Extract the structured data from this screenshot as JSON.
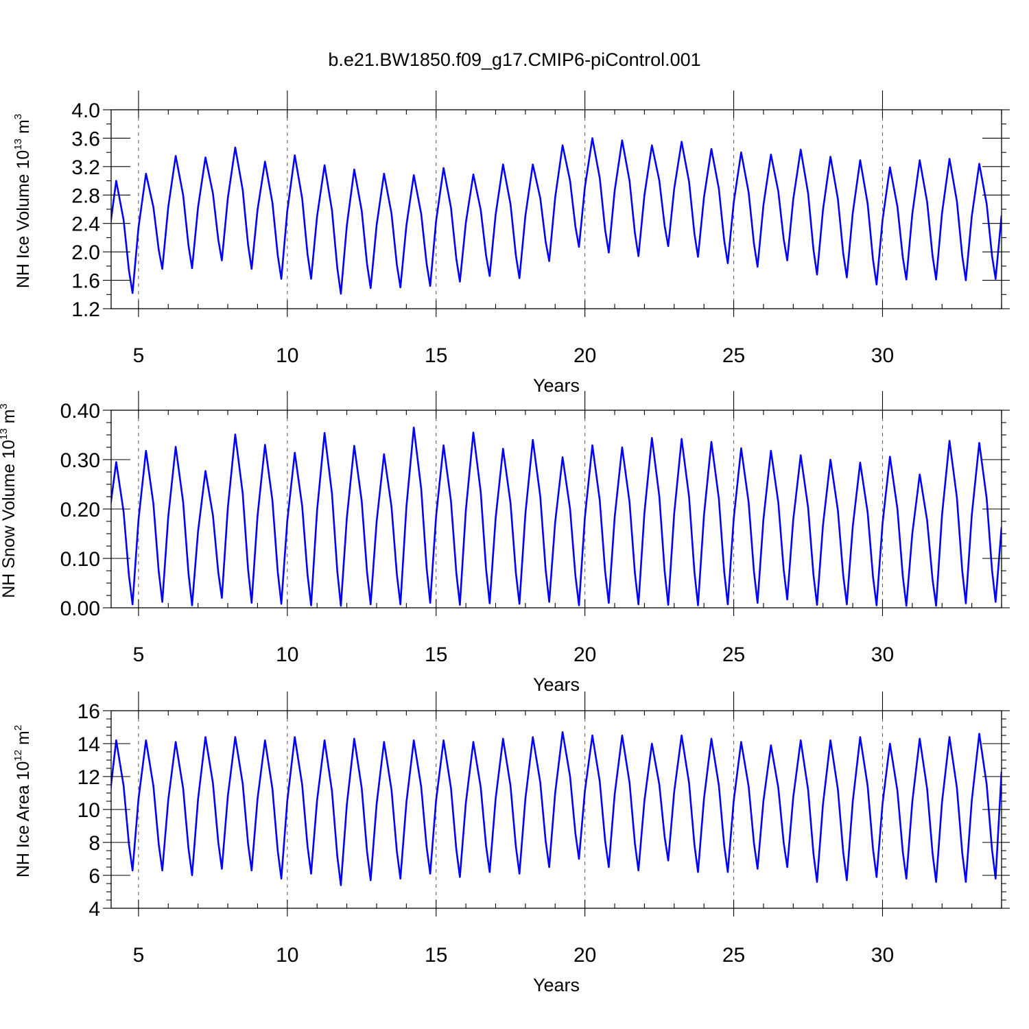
{
  "title": "b.e21.BW1850.f09_g17.CMIP6-piControl.001",
  "colors": {
    "series": "#0000ff",
    "axes": "#000000",
    "grid": "#555555"
  },
  "chart_data": [
    {
      "type": "line",
      "name": "ice-volume",
      "ylabel_main": "NH Ice Volume 10",
      "ylabel_exp": "13",
      "ylabel_unit": " m",
      "ylabel_unit_exp": "3",
      "xlabel": "Years",
      "xlim": [
        4.08,
        34.0
      ],
      "ylim": [
        1.2,
        4.0
      ],
      "xticks": [
        5,
        10,
        15,
        20,
        25,
        30
      ],
      "xtick_labels": [
        "5",
        "10",
        "15",
        "20",
        "25",
        "30"
      ],
      "yticks": [
        1.2,
        1.6,
        2.0,
        2.4,
        2.8,
        3.2,
        3.6,
        4.0
      ],
      "ytick_labels": [
        "1.2",
        "1.6",
        "2.0",
        "2.4",
        "2.8",
        "3.2",
        "3.6",
        "4.0"
      ],
      "series": {
        "name": "NH Ice Volume",
        "start_year": 4.0,
        "annual_max": [
          3.0,
          3.1,
          3.35,
          3.33,
          3.47,
          3.27,
          3.36,
          3.22,
          3.16,
          3.1,
          3.08,
          3.18,
          3.09,
          3.23,
          3.23,
          3.5,
          3.6,
          3.57,
          3.5,
          3.55,
          3.45,
          3.4,
          3.37,
          3.44,
          3.34,
          3.29,
          3.19,
          3.29,
          3.31,
          3.24
        ],
        "annual_min": [
          1.42,
          1.76,
          1.77,
          1.88,
          1.76,
          1.62,
          1.62,
          1.41,
          1.49,
          1.5,
          1.52,
          1.58,
          1.66,
          1.63,
          1.87,
          2.07,
          1.99,
          1.94,
          2.08,
          1.93,
          1.84,
          1.79,
          1.88,
          1.68,
          1.64,
          1.54,
          1.61,
          1.61,
          1.6,
          1.62
        ]
      }
    },
    {
      "type": "line",
      "name": "snow-volume",
      "ylabel_main": "NH Snow Volume 10",
      "ylabel_exp": "13",
      "ylabel_unit": " m",
      "ylabel_unit_exp": "3",
      "xlabel": "Years",
      "xlim": [
        4.08,
        34.0
      ],
      "ylim": [
        0.0,
        0.4
      ],
      "xticks": [
        5,
        10,
        15,
        20,
        25,
        30
      ],
      "xtick_labels": [
        "5",
        "10",
        "15",
        "20",
        "25",
        "30"
      ],
      "yticks": [
        0.0,
        0.1,
        0.2,
        0.3,
        0.4
      ],
      "ytick_labels": [
        "0.00",
        "0.10",
        "0.20",
        "0.30",
        "0.40"
      ],
      "series": {
        "name": "NH Snow Volume",
        "start_year": 4.0,
        "start_value": 0.18,
        "annual_max": [
          0.295,
          0.318,
          0.326,
          0.277,
          0.351,
          0.33,
          0.314,
          0.354,
          0.328,
          0.311,
          0.365,
          0.329,
          0.355,
          0.322,
          0.34,
          0.305,
          0.329,
          0.325,
          0.344,
          0.342,
          0.336,
          0.323,
          0.318,
          0.309,
          0.3,
          0.294,
          0.306,
          0.27,
          0.338,
          0.334
        ],
        "annual_min": [
          0.007,
          0.012,
          0.005,
          0.02,
          0.01,
          0.008,
          0.005,
          0.004,
          0.007,
          0.007,
          0.01,
          0.006,
          0.009,
          0.008,
          0.012,
          0.005,
          0.01,
          0.007,
          0.006,
          0.005,
          0.007,
          0.01,
          0.017,
          0.006,
          0.007,
          0.005,
          0.004,
          0.004,
          0.009,
          0.012
        ],
        "end_value": 0.163
      }
    },
    {
      "type": "line",
      "name": "ice-area",
      "ylabel_main": "NH Ice Area 10",
      "ylabel_exp": "12",
      "ylabel_unit": " m",
      "ylabel_unit_exp": "2",
      "xlabel": "Years",
      "xlim": [
        4.08,
        34.0
      ],
      "ylim": [
        4,
        16
      ],
      "xticks": [
        5,
        10,
        15,
        20,
        25,
        30
      ],
      "xtick_labels": [
        "5",
        "10",
        "15",
        "20",
        "25",
        "30"
      ],
      "yticks": [
        4,
        6,
        8,
        10,
        12,
        14,
        16
      ],
      "ytick_labels": [
        "4",
        "6",
        "8",
        "10",
        "12",
        "14",
        "16"
      ],
      "series": {
        "name": "NH Ice Area",
        "start_year": 4.0,
        "annual_max": [
          14.2,
          14.2,
          14.1,
          14.4,
          14.4,
          14.2,
          14.4,
          14.2,
          14.3,
          14.1,
          14.2,
          14.2,
          14.1,
          14.3,
          14.4,
          14.7,
          14.5,
          14.5,
          14.0,
          14.5,
          14.3,
          14.1,
          13.9,
          14.2,
          14.2,
          14.4,
          14.0,
          14.3,
          14.4,
          14.6
        ],
        "annual_min": [
          6.3,
          6.3,
          6.0,
          6.4,
          6.3,
          5.8,
          6.1,
          5.4,
          5.7,
          5.8,
          6.1,
          5.9,
          6.2,
          6.1,
          6.5,
          7.0,
          6.5,
          6.3,
          6.9,
          6.2,
          6.2,
          6.4,
          6.5,
          5.6,
          5.7,
          5.9,
          5.8,
          5.6,
          5.6,
          5.8
        ],
        "end_value": 12.3
      }
    }
  ]
}
